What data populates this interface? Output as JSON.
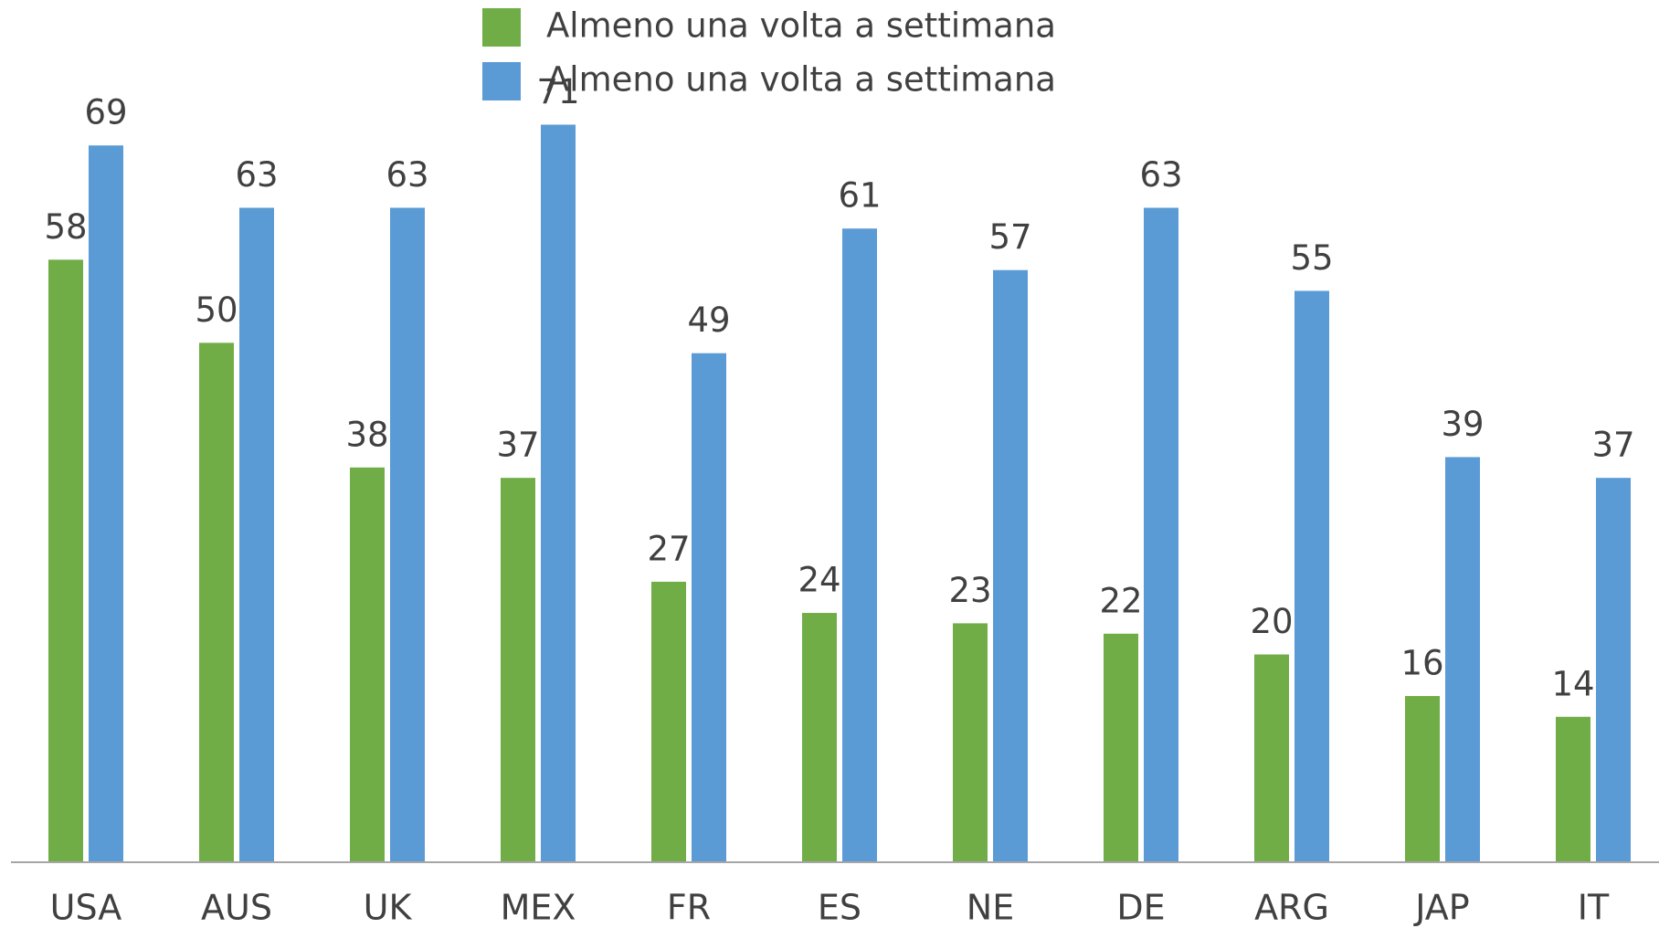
{
  "chart_data": {
    "type": "bar",
    "categories": [
      "USA",
      "AUS",
      "UK",
      "MEX",
      "FR",
      "ES",
      "NE",
      "DE",
      "ARG",
      "JAP",
      "IT"
    ],
    "series": [
      {
        "name": "Almeno una volta a settimana",
        "color": "#70ad47",
        "values": [
          58,
          50,
          38,
          37,
          27,
          24,
          23,
          22,
          20,
          16,
          14
        ]
      },
      {
        "name": "Almeno una volta a settimana",
        "color": "#5b9bd5",
        "values": [
          69,
          63,
          63,
          71,
          49,
          61,
          57,
          63,
          55,
          39,
          37
        ]
      }
    ],
    "ylim": [
      0,
      83
    ],
    "legend": "top"
  }
}
